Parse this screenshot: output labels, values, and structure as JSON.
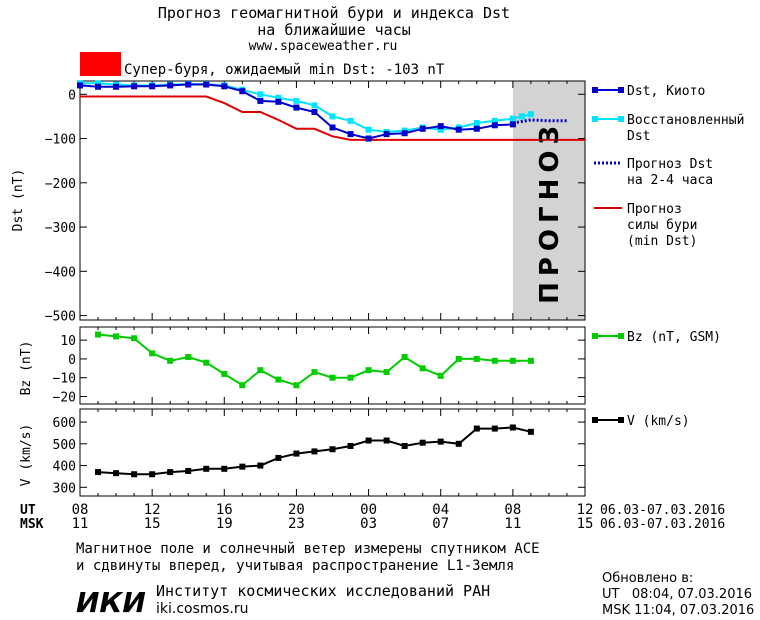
{
  "header": {
    "title_line1": "Прогноз геомагнитной бури и индекса Dst",
    "title_line2": "на ближайшие часы",
    "site": "www.spaceweather.ru",
    "storm_label": "Супер-буря, ожидаемый min Dst: -103 nT"
  },
  "colors": {
    "dst_kyoto": "#0000cc",
    "dst_restored": "#00e5ff",
    "dst_forecast": "#0000cc",
    "storm_forecast": "#dd0000",
    "bz": "#00cc00",
    "v": "#000000",
    "forecast_band": "#d3d3d3",
    "storm_box": "#ff0000"
  },
  "forecast_band_text": "ПРОГНОЗ",
  "chart_data": [
    {
      "type": "line",
      "ylabel": "Dst (nT)",
      "ylim": [
        -510,
        30
      ],
      "xlim": [
        8,
        36
      ],
      "yticks": [
        0,
        -100,
        -200,
        -300,
        -400,
        -500
      ],
      "forecast_region": [
        32,
        36
      ],
      "series": [
        {
          "name": "Dst, Киото",
          "key": "kyoto",
          "x": [
            8,
            9,
            10,
            11,
            12,
            13,
            14,
            15,
            16,
            17,
            18,
            19,
            20,
            21,
            22,
            23,
            24,
            25,
            26,
            27,
            28,
            29,
            30,
            31,
            32
          ],
          "y": [
            20,
            17,
            17,
            18,
            18,
            20,
            22,
            22,
            18,
            7,
            -15,
            -17,
            -30,
            -40,
            -75,
            -90,
            -100,
            -90,
            -88,
            -78,
            -72,
            -80,
            -78,
            -70,
            -68
          ]
        },
        {
          "name": "Восстановленный Dst",
          "key": "restored",
          "x": [
            8,
            9,
            10,
            11,
            12,
            13,
            14,
            15,
            16,
            17,
            18,
            19,
            20,
            21,
            22,
            23,
            24,
            25,
            26,
            27,
            28,
            29,
            30,
            31,
            32,
            32.5,
            33
          ],
          "y": [
            25,
            25,
            22,
            20,
            20,
            22,
            23,
            23,
            20,
            10,
            0,
            -8,
            -15,
            -25,
            -50,
            -60,
            -80,
            -85,
            -82,
            -75,
            -80,
            -75,
            -65,
            -60,
            -55,
            -50,
            -45
          ]
        },
        {
          "name": "Прогноз Dst на 2-4 часа",
          "key": "forecast",
          "x": [
            32,
            33,
            34,
            35
          ],
          "y": [
            -65,
            -58,
            -60,
            -60
          ]
        },
        {
          "name": "Прогноз силы бури (min Dst)",
          "key": "storm",
          "x": [
            8,
            15,
            16,
            17,
            18,
            19,
            20,
            21,
            22,
            23,
            24,
            36
          ],
          "y": [
            -5,
            -5,
            -20,
            -40,
            -40,
            -58,
            -78,
            -78,
            -95,
            -103,
            -103,
            -103
          ]
        }
      ]
    },
    {
      "type": "line",
      "ylabel": "Bz (nT)",
      "ylim": [
        -24,
        17
      ],
      "xlim": [
        8,
        36
      ],
      "yticks": [
        10,
        0,
        -10,
        -20
      ],
      "series": [
        {
          "name": "Bz (nT, GSM)",
          "key": "bz",
          "x": [
            9,
            10,
            11,
            12,
            13,
            14,
            15,
            16,
            17,
            18,
            19,
            20,
            21,
            22,
            23,
            24,
            25,
            26,
            27,
            28,
            29,
            30,
            31,
            32,
            33
          ],
          "y": [
            13,
            12,
            11,
            3,
            -1,
            1,
            -2,
            -8,
            -14,
            -6,
            -11,
            -14,
            -7,
            -10,
            -10,
            -6,
            -7,
            1,
            -5,
            -9,
            0,
            0,
            -1,
            -1,
            -1
          ]
        }
      ]
    },
    {
      "type": "line",
      "ylabel": "V (km/s)",
      "ylim": [
        260,
        660
      ],
      "xlim": [
        8,
        36
      ],
      "yticks": [
        600,
        500,
        400,
        300
      ],
      "series": [
        {
          "name": "V (km/s)",
          "key": "v",
          "x": [
            9,
            10,
            11,
            12,
            13,
            14,
            15,
            16,
            17,
            18,
            19,
            20,
            21,
            22,
            23,
            24,
            25,
            26,
            27,
            28,
            29,
            30,
            31,
            32,
            33
          ],
          "y": [
            370,
            365,
            360,
            360,
            370,
            375,
            385,
            385,
            395,
            400,
            435,
            455,
            465,
            475,
            490,
            515,
            515,
            490,
            505,
            510,
            500,
            570,
            570,
            575,
            555
          ]
        }
      ]
    }
  ],
  "legend": {
    "kyoto": "Dst, Киото",
    "restored_1": "Восстановленный",
    "restored_2": "Dst",
    "forecast_1": "Прогноз Dst",
    "forecast_2": "на 2-4 часа",
    "storm_1": "Прогноз",
    "storm_2": "силы бури",
    "storm_3": "(min Dst)",
    "bz": "Bz (nT, GSM)",
    "v": "V (km/s)"
  },
  "xaxis": {
    "ut_label": "UT",
    "msk_label": "MSK",
    "ut_ticks": [
      "08",
      "12",
      "16",
      "20",
      "00",
      "04",
      "08",
      "12"
    ],
    "msk_ticks": [
      "11",
      "15",
      "19",
      "23",
      "03",
      "07",
      "11",
      "15"
    ],
    "ut_range": "06.03-07.03.2016",
    "msk_range": "06.03-07.03.2016"
  },
  "footer": {
    "note_line1": "Магнитное поле и солнечный ветер измерены спутником ACE",
    "note_line2": "и сдвинуты вперед, учитывая распространение L1-Земля",
    "logo": "ИКИ",
    "institute": "Институт космических исследований РАН",
    "institute_url": "iki.cosmos.ru",
    "updated_label": "Обновлено в:",
    "updated_ut": "UT   08:04, 07.03.2016",
    "updated_msk": "MSK 11:04, 07.03.2016"
  }
}
